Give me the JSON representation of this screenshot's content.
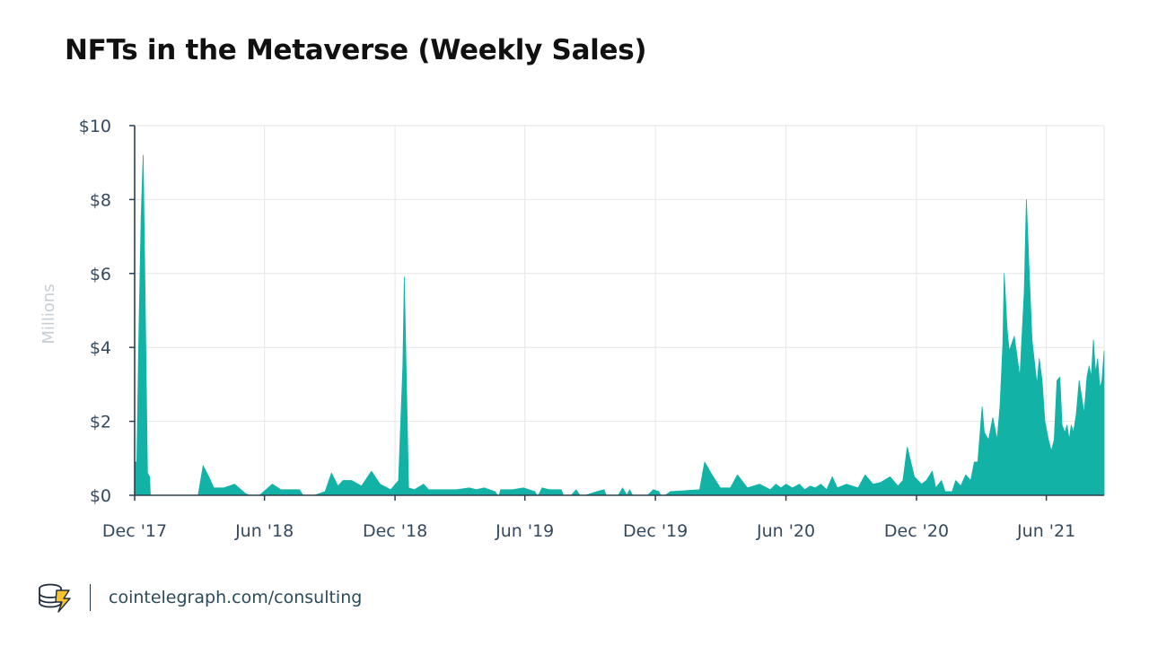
{
  "title": "NFTs in the Metaverse (Weekly Sales)",
  "footer": {
    "url": "cointelegraph.com/consulting",
    "logo_icon": "cointelegraph-coins-logo"
  },
  "colors": {
    "area": "#12b3a6",
    "grid": "#e6e6e6",
    "axis": "#2c3e50",
    "tick_text": "#34495e",
    "ylabel_text": "#c5ced4"
  },
  "chart_data": {
    "type": "area",
    "title": "NFTs in the Metaverse (Weekly Sales)",
    "ylabel": "Millions",
    "xlabel": "",
    "ylim": [
      0,
      10
    ],
    "y_unit": "USD millions",
    "yticks": [
      0,
      2,
      4,
      6,
      8,
      10
    ],
    "ytick_labels": [
      "$0",
      "$2",
      "$4",
      "$6",
      "$8",
      "$10"
    ],
    "xticks": [
      "2017-12-01",
      "2018-06-01",
      "2018-12-01",
      "2019-06-01",
      "2019-12-01",
      "2020-06-01",
      "2020-12-01",
      "2021-06-01"
    ],
    "xtick_labels": [
      "Dec '17",
      "Jun '18",
      "Dec '18",
      "Jun '19",
      "Dec '19",
      "Jun '20",
      "Dec '20",
      "Jun '21"
    ],
    "x_range": [
      "2017-12-01",
      "2021-08-21"
    ],
    "grid": true,
    "series": [
      {
        "values": [
          [
            "2017-12-01",
            0.9
          ],
          [
            "2017-12-04",
            0.9
          ],
          [
            "2017-12-07",
            4.5
          ],
          [
            "2017-12-10",
            7.5
          ],
          [
            "2017-12-13",
            9.2
          ],
          [
            "2017-12-16",
            5.0
          ],
          [
            "2017-12-19",
            0.6
          ],
          [
            "2017-12-22",
            0.5
          ],
          [
            "2017-12-23",
            0.0
          ],
          [
            "2018-02-28",
            0.0
          ],
          [
            "2018-03-07",
            0.8
          ],
          [
            "2018-03-15",
            0.5
          ],
          [
            "2018-03-22",
            0.2
          ],
          [
            "2018-04-05",
            0.2
          ],
          [
            "2018-04-20",
            0.3
          ],
          [
            "2018-05-05",
            0.05
          ],
          [
            "2018-05-10",
            0.0
          ],
          [
            "2018-05-25",
            0.0
          ],
          [
            "2018-06-12",
            0.3
          ],
          [
            "2018-06-24",
            0.15
          ],
          [
            "2018-07-20",
            0.15
          ],
          [
            "2018-07-25",
            0.0
          ],
          [
            "2018-08-10",
            0.0
          ],
          [
            "2018-08-25",
            0.1
          ],
          [
            "2018-09-03",
            0.6
          ],
          [
            "2018-09-12",
            0.25
          ],
          [
            "2018-09-19",
            0.4
          ],
          [
            "2018-10-01",
            0.4
          ],
          [
            "2018-10-15",
            0.25
          ],
          [
            "2018-10-29",
            0.65
          ],
          [
            "2018-11-10",
            0.3
          ],
          [
            "2018-11-25",
            0.15
          ],
          [
            "2018-12-06",
            0.4
          ],
          [
            "2018-12-12",
            3.5
          ],
          [
            "2018-12-14",
            5.9
          ],
          [
            "2018-12-17",
            3.0
          ],
          [
            "2018-12-20",
            0.2
          ],
          [
            "2018-12-28",
            0.15
          ],
          [
            "2019-01-10",
            0.3
          ],
          [
            "2019-01-17",
            0.15
          ],
          [
            "2019-02-05",
            0.15
          ],
          [
            "2019-02-25",
            0.15
          ],
          [
            "2019-03-15",
            0.2
          ],
          [
            "2019-03-25",
            0.15
          ],
          [
            "2019-04-05",
            0.2
          ],
          [
            "2019-04-20",
            0.1
          ],
          [
            "2019-04-24",
            0.0
          ],
          [
            "2019-04-26",
            0.0
          ],
          [
            "2019-04-28",
            0.15
          ],
          [
            "2019-05-15",
            0.15
          ],
          [
            "2019-05-30",
            0.2
          ],
          [
            "2019-06-15",
            0.1
          ],
          [
            "2019-06-18",
            0.0
          ],
          [
            "2019-06-20",
            0.0
          ],
          [
            "2019-06-25",
            0.2
          ],
          [
            "2019-07-05",
            0.15
          ],
          [
            "2019-07-22",
            0.15
          ],
          [
            "2019-07-25",
            0.0
          ],
          [
            "2019-08-05",
            0.0
          ],
          [
            "2019-08-12",
            0.15
          ],
          [
            "2019-08-17",
            0.0
          ],
          [
            "2019-08-25",
            0.0
          ],
          [
            "2019-09-10",
            0.1
          ],
          [
            "2019-09-20",
            0.15
          ],
          [
            "2019-09-23",
            0.0
          ],
          [
            "2019-10-10",
            0.0
          ],
          [
            "2019-10-16",
            0.2
          ],
          [
            "2019-10-22",
            0.0
          ],
          [
            "2019-10-26",
            0.15
          ],
          [
            "2019-10-30",
            0.0
          ],
          [
            "2019-11-20",
            0.0
          ],
          [
            "2019-11-28",
            0.15
          ],
          [
            "2019-12-06",
            0.1
          ],
          [
            "2019-12-08",
            0.0
          ],
          [
            "2019-12-15",
            0.0
          ],
          [
            "2019-12-22",
            0.1
          ],
          [
            "2020-02-01",
            0.15
          ],
          [
            "2020-02-08",
            0.9
          ],
          [
            "2020-02-20",
            0.5
          ],
          [
            "2020-03-01",
            0.2
          ],
          [
            "2020-03-15",
            0.2
          ],
          [
            "2020-03-25",
            0.55
          ],
          [
            "2020-04-08",
            0.2
          ],
          [
            "2020-04-25",
            0.3
          ],
          [
            "2020-05-10",
            0.15
          ],
          [
            "2020-05-18",
            0.3
          ],
          [
            "2020-05-25",
            0.2
          ],
          [
            "2020-06-01",
            0.3
          ],
          [
            "2020-06-10",
            0.2
          ],
          [
            "2020-06-20",
            0.3
          ],
          [
            "2020-06-27",
            0.15
          ],
          [
            "2020-07-05",
            0.25
          ],
          [
            "2020-07-12",
            0.2
          ],
          [
            "2020-07-20",
            0.3
          ],
          [
            "2020-07-28",
            0.15
          ],
          [
            "2020-08-05",
            0.5
          ],
          [
            "2020-08-12",
            0.2
          ],
          [
            "2020-08-25",
            0.3
          ],
          [
            "2020-09-10",
            0.2
          ],
          [
            "2020-09-20",
            0.55
          ],
          [
            "2020-10-01",
            0.3
          ],
          [
            "2020-10-12",
            0.35
          ],
          [
            "2020-10-25",
            0.5
          ],
          [
            "2020-11-05",
            0.25
          ],
          [
            "2020-11-12",
            0.4
          ],
          [
            "2020-11-18",
            1.3
          ],
          [
            "2020-11-28",
            0.5
          ],
          [
            "2020-12-08",
            0.3
          ],
          [
            "2020-12-15",
            0.4
          ],
          [
            "2020-12-23",
            0.65
          ],
          [
            "2020-12-28",
            0.2
          ],
          [
            "2021-01-05",
            0.4
          ],
          [
            "2021-01-10",
            0.1
          ],
          [
            "2021-01-20",
            0.1
          ],
          [
            "2021-01-25",
            0.4
          ],
          [
            "2021-02-01",
            0.25
          ],
          [
            "2021-02-08",
            0.55
          ],
          [
            "2021-02-15",
            0.4
          ],
          [
            "2021-02-20",
            0.9
          ],
          [
            "2021-02-25",
            0.9
          ],
          [
            "2021-03-03",
            2.4
          ],
          [
            "2021-03-06",
            1.7
          ],
          [
            "2021-03-12",
            1.5
          ],
          [
            "2021-03-18",
            2.1
          ],
          [
            "2021-03-24",
            1.5
          ],
          [
            "2021-03-28",
            2.4
          ],
          [
            "2021-04-01",
            4.1
          ],
          [
            "2021-04-03",
            6.0
          ],
          [
            "2021-04-07",
            4.5
          ],
          [
            "2021-04-10",
            3.9
          ],
          [
            "2021-04-17",
            4.3
          ],
          [
            "2021-04-25",
            3.2
          ],
          [
            "2021-05-01",
            5.5
          ],
          [
            "2021-05-04",
            8.0
          ],
          [
            "2021-05-08",
            6.0
          ],
          [
            "2021-05-12",
            4.2
          ],
          [
            "2021-05-16",
            3.5
          ],
          [
            "2021-05-19",
            3.0
          ],
          [
            "2021-05-22",
            3.7
          ],
          [
            "2021-05-26",
            3.1
          ],
          [
            "2021-05-30",
            2.0
          ],
          [
            "2021-06-04",
            1.5
          ],
          [
            "2021-06-08",
            1.2
          ],
          [
            "2021-06-12",
            1.5
          ],
          [
            "2021-06-16",
            3.1
          ],
          [
            "2021-06-20",
            3.2
          ],
          [
            "2021-06-23",
            1.9
          ],
          [
            "2021-06-27",
            1.7
          ],
          [
            "2021-06-30",
            1.9
          ],
          [
            "2021-07-03",
            1.5
          ],
          [
            "2021-07-06",
            1.9
          ],
          [
            "2021-07-09",
            1.7
          ],
          [
            "2021-07-13",
            2.2
          ],
          [
            "2021-07-17",
            3.1
          ],
          [
            "2021-07-21",
            2.6
          ],
          [
            "2021-07-24",
            2.2
          ],
          [
            "2021-07-28",
            3.2
          ],
          [
            "2021-07-31",
            3.5
          ],
          [
            "2021-08-03",
            3.2
          ],
          [
            "2021-08-06",
            4.2
          ],
          [
            "2021-08-09",
            3.3
          ],
          [
            "2021-08-12",
            3.7
          ],
          [
            "2021-08-15",
            2.9
          ],
          [
            "2021-08-18",
            3.1
          ],
          [
            "2021-08-21",
            3.9
          ]
        ]
      }
    ]
  }
}
